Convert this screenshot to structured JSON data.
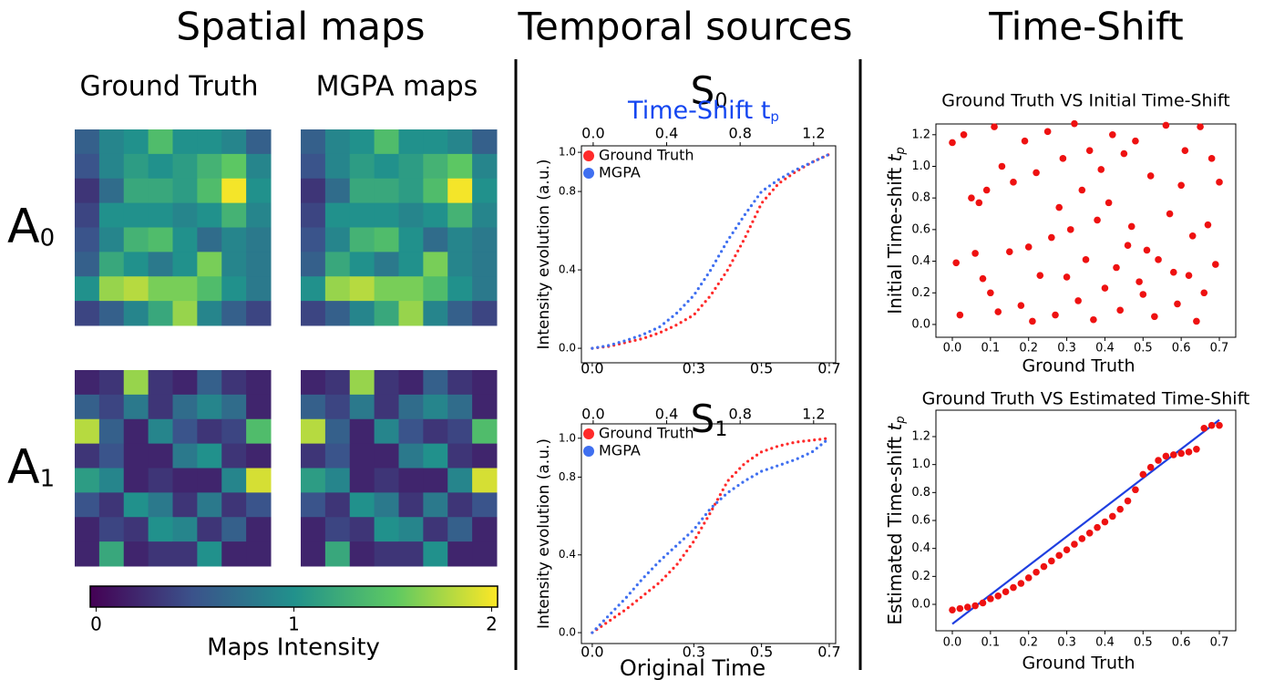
{
  "section_titles": [
    "Spatial maps",
    "Temporal sources",
    "Time-Shift"
  ],
  "chart_data": [
    {
      "type": "heatmap",
      "colormap": "viridis",
      "column_titles": [
        "Ground Truth",
        "MGPA maps"
      ],
      "row_labels": [
        {
          "letter": "A",
          "sub": "0"
        },
        {
          "letter": "A",
          "sub": "1"
        }
      ],
      "maps": [
        [
          [
            [
              0.6,
              0.9,
              1.0,
              1.4,
              1.0,
              1.0,
              0.9,
              0.6
            ],
            [
              0.5,
              0.9,
              1.1,
              1.0,
              1.1,
              1.3,
              1.5,
              0.9
            ],
            [
              0.3,
              0.7,
              1.2,
              1.2,
              1.1,
              1.4,
              2.0,
              1.0
            ],
            [
              0.4,
              1.0,
              1.0,
              1.0,
              0.9,
              1.0,
              1.3,
              0.9
            ],
            [
              0.5,
              0.9,
              1.3,
              1.4,
              1.0,
              0.7,
              0.9,
              0.8
            ],
            [
              0.6,
              1.2,
              1.0,
              0.8,
              1.0,
              1.6,
              0.9,
              0.8
            ],
            [
              1.0,
              1.7,
              1.8,
              1.6,
              1.6,
              1.4,
              1.0,
              0.8
            ],
            [
              0.4,
              0.6,
              0.9,
              1.2,
              1.7,
              0.9,
              0.6,
              0.4
            ]
          ],
          [
            [
              0.6,
              0.9,
              1.0,
              1.4,
              1.0,
              1.0,
              0.9,
              0.6
            ],
            [
              0.5,
              0.9,
              1.1,
              1.0,
              1.1,
              1.3,
              1.5,
              0.9
            ],
            [
              0.3,
              0.7,
              1.2,
              1.2,
              1.1,
              1.4,
              2.0,
              1.0
            ],
            [
              0.4,
              1.0,
              1.0,
              1.0,
              0.9,
              1.0,
              1.3,
              0.9
            ],
            [
              0.5,
              0.9,
              1.3,
              1.4,
              1.0,
              0.7,
              0.9,
              0.8
            ],
            [
              0.6,
              1.2,
              1.0,
              0.8,
              1.0,
              1.6,
              0.9,
              0.8
            ],
            [
              1.0,
              1.7,
              1.8,
              1.6,
              1.6,
              1.4,
              1.0,
              0.8
            ],
            [
              0.4,
              0.6,
              0.9,
              1.2,
              1.7,
              0.9,
              0.6,
              0.4
            ]
          ]
        ],
        [
          [
            [
              0.2,
              0.3,
              1.7,
              0.3,
              0.2,
              0.6,
              0.3,
              0.2
            ],
            [
              0.6,
              0.4,
              0.8,
              0.3,
              0.7,
              0.9,
              0.7,
              0.2
            ],
            [
              1.8,
              0.6,
              0.2,
              0.9,
              0.5,
              0.3,
              0.4,
              1.4
            ],
            [
              0.3,
              0.5,
              0.2,
              0.2,
              0.8,
              1.0,
              0.3,
              0.2
            ],
            [
              1.1,
              0.9,
              0.2,
              0.3,
              0.2,
              0.2,
              0.9,
              1.9
            ],
            [
              0.5,
              0.3,
              1.0,
              0.8,
              0.3,
              0.8,
              0.3,
              0.5
            ],
            [
              0.2,
              0.4,
              0.3,
              1.0,
              0.9,
              0.3,
              0.6,
              0.2
            ],
            [
              0.2,
              1.2,
              0.2,
              0.3,
              0.3,
              1.0,
              0.2,
              0.2
            ]
          ],
          [
            [
              0.2,
              0.3,
              1.7,
              0.3,
              0.2,
              0.6,
              0.3,
              0.2
            ],
            [
              0.6,
              0.4,
              0.8,
              0.3,
              0.7,
              0.9,
              0.7,
              0.2
            ],
            [
              1.8,
              0.6,
              0.2,
              0.9,
              0.5,
              0.3,
              0.4,
              1.4
            ],
            [
              0.3,
              0.5,
              0.2,
              0.2,
              0.8,
              1.0,
              0.3,
              0.2
            ],
            [
              1.1,
              0.9,
              0.2,
              0.3,
              0.2,
              0.2,
              0.9,
              1.9
            ],
            [
              0.5,
              0.3,
              1.0,
              0.8,
              0.3,
              0.8,
              0.3,
              0.5
            ],
            [
              0.2,
              0.4,
              0.3,
              1.0,
              0.9,
              0.3,
              0.6,
              0.2
            ],
            [
              0.2,
              1.2,
              0.2,
              0.3,
              0.3,
              1.0,
              0.2,
              0.2
            ]
          ]
        ]
      ],
      "zlim": [
        -0.03,
        2.03
      ],
      "zticks": [
        0,
        1,
        2
      ],
      "colorbar_label": "Maps Intensity"
    },
    {
      "type": "line",
      "title": "S",
      "title_sub": "0",
      "x2label": "Time-Shift t",
      "x2label_sub": "p",
      "ylabel": "Intensity evolution (a.u.)",
      "legend": "upper left",
      "xaxis_color": "#ff0000",
      "x2axis_color": "#1446f0",
      "x": [
        0,
        0.05,
        0.1,
        0.15,
        0.2,
        0.25,
        0.3,
        0.35,
        0.4,
        0.45,
        0.5,
        0.55,
        0.6,
        0.65,
        0.7
      ],
      "series": [
        {
          "name": "Ground Truth",
          "color": "#ff2a2a",
          "values": [
            0,
            0.01,
            0.03,
            0.05,
            0.08,
            0.12,
            0.17,
            0.27,
            0.4,
            0.56,
            0.74,
            0.84,
            0.9,
            0.95,
            0.99
          ]
        },
        {
          "name": "MGPA",
          "color": "#3f6ff0",
          "values": [
            0,
            0.015,
            0.04,
            0.07,
            0.11,
            0.18,
            0.27,
            0.4,
            0.55,
            0.68,
            0.8,
            0.86,
            0.91,
            0.95,
            0.99
          ]
        }
      ],
      "xlim": [
        -0.032,
        0.719
      ],
      "xticks": [
        {
          "value": 0,
          "label": "0.0"
        },
        0.3,
        0.5,
        0.7
      ],
      "x2lim": [
        -0.064,
        1.32
      ],
      "x2ticks": [
        {
          "value": 0,
          "label": "0.0"
        },
        0.4,
        0.8,
        1.2
      ],
      "ylim": [
        -0.074,
        1.033
      ],
      "yticks": [
        {
          "value": 0,
          "label": "0.0"
        },
        0.4,
        0.8,
        {
          "value": 1,
          "label": "1.0"
        }
      ]
    },
    {
      "type": "line",
      "title": "S",
      "title_sub": "1",
      "xlabel": "Original Time",
      "ylabel": "Intensity evolution (a.u.)",
      "legend": "upper left",
      "xaxis_color": "#ff0000",
      "x2axis_color": "#1446f0",
      "x": [
        0,
        0.05,
        0.1,
        0.15,
        0.2,
        0.25,
        0.3,
        0.35,
        0.4,
        0.45,
        0.5,
        0.55,
        0.6,
        0.65,
        0.7
      ],
      "series": [
        {
          "name": "Ground Truth",
          "color": "#ff2a2a",
          "values": [
            0,
            0.06,
            0.12,
            0.19,
            0.26,
            0.35,
            0.47,
            0.62,
            0.78,
            0.87,
            0.93,
            0.96,
            0.98,
            0.99,
            1.0
          ]
        },
        {
          "name": "MGPA",
          "color": "#3f6ff0",
          "values": [
            0,
            0.09,
            0.18,
            0.28,
            0.37,
            0.45,
            0.53,
            0.64,
            0.72,
            0.78,
            0.83,
            0.86,
            0.89,
            0.93,
            1.0
          ]
        }
      ],
      "xlim": [
        -0.032,
        0.719
      ],
      "xticks": [
        {
          "value": 0,
          "label": "0.0"
        },
        0.3,
        0.5,
        0.7
      ],
      "x2lim": [
        -0.064,
        1.32
      ],
      "x2ticks": [
        {
          "value": 0,
          "label": "0.0"
        },
        0.4,
        0.8,
        1.2
      ],
      "ylim": [
        -0.056,
        1.074
      ],
      "yticks": [
        {
          "value": 0,
          "label": "0.0"
        },
        0.4,
        0.8,
        {
          "value": 1,
          "label": "1.0"
        }
      ]
    },
    {
      "type": "scatter",
      "title": "Ground Truth VS Initial Time-Shift",
      "xlabel": "Ground Truth",
      "ylabel": "Initial Time-shift ",
      "ylabel_var": "t",
      "ylabel_sub": "p",
      "points": {
        "color": "#ee1111",
        "x": [
          0.0,
          0.01,
          0.02,
          0.03,
          0.05,
          0.06,
          0.07,
          0.08,
          0.09,
          0.1,
          0.11,
          0.12,
          0.13,
          0.15,
          0.16,
          0.18,
          0.19,
          0.2,
          0.21,
          0.22,
          0.23,
          0.25,
          0.26,
          0.27,
          0.28,
          0.29,
          0.3,
          0.31,
          0.32,
          0.33,
          0.34,
          0.35,
          0.36,
          0.37,
          0.38,
          0.39,
          0.4,
          0.41,
          0.42,
          0.43,
          0.44,
          0.45,
          0.46,
          0.47,
          0.48,
          0.49,
          0.5,
          0.51,
          0.52,
          0.53,
          0.54,
          0.56,
          0.57,
          0.58,
          0.59,
          0.6,
          0.61,
          0.62,
          0.63,
          0.64,
          0.65,
          0.66,
          0.67,
          0.68,
          0.69,
          0.7
        ],
        "y": [
          1.15,
          0.39,
          0.06,
          1.2,
          0.8,
          0.45,
          0.77,
          0.29,
          0.85,
          0.2,
          1.25,
          0.08,
          1.0,
          0.46,
          0.9,
          0.12,
          1.16,
          0.49,
          0.02,
          0.96,
          0.31,
          1.22,
          0.55,
          0.06,
          0.74,
          1.05,
          0.3,
          0.6,
          1.27,
          0.15,
          0.85,
          0.41,
          1.1,
          0.03,
          0.66,
          0.98,
          0.23,
          0.77,
          1.2,
          0.36,
          0.09,
          1.08,
          0.5,
          0.62,
          1.16,
          0.27,
          0.19,
          0.47,
          0.94,
          0.05,
          0.41,
          1.26,
          0.7,
          0.33,
          0.13,
          0.88,
          1.1,
          0.31,
          0.56,
          0.02,
          1.25,
          0.2,
          0.63,
          1.05,
          0.38,
          0.9
        ]
      },
      "xlim": [
        -0.043,
        0.743
      ],
      "xticks": [
        {
          "value": 0,
          "label": "0.0"
        },
        0.1,
        0.2,
        0.3,
        0.4,
        0.5,
        0.6,
        0.7
      ],
      "ylim": [
        -0.081,
        1.268
      ],
      "yticks": [
        {
          "value": 0,
          "label": "0.0"
        },
        0.2,
        0.4,
        0.6,
        0.8,
        {
          "value": 1,
          "label": "1.0"
        },
        1.2
      ]
    },
    {
      "type": "scatter",
      "title": "Ground Truth VS Estimated Time-Shift",
      "xlabel": "Ground Truth",
      "ylabel": "Estimated Time-shift ",
      "ylabel_var": "t",
      "ylabel_sub": "p",
      "points": {
        "color": "#ee1111",
        "x": [
          0,
          0.02,
          0.04,
          0.06,
          0.08,
          0.1,
          0.12,
          0.14,
          0.16,
          0.18,
          0.2,
          0.22,
          0.24,
          0.26,
          0.28,
          0.3,
          0.32,
          0.34,
          0.36,
          0.38,
          0.4,
          0.42,
          0.44,
          0.46,
          0.48,
          0.5,
          0.52,
          0.54,
          0.56,
          0.58,
          0.6,
          0.62,
          0.64,
          0.66,
          0.68,
          0.7
        ],
        "y": [
          -0.04,
          -0.03,
          -0.02,
          -0.01,
          0.01,
          0.04,
          0.06,
          0.09,
          0.12,
          0.15,
          0.19,
          0.23,
          0.27,
          0.31,
          0.35,
          0.39,
          0.43,
          0.47,
          0.51,
          0.55,
          0.59,
          0.63,
          0.68,
          0.74,
          0.82,
          0.93,
          0.98,
          1.03,
          1.06,
          1.07,
          1.08,
          1.09,
          1.11,
          1.26,
          1.28,
          1.28
        ]
      },
      "fit_line": {
        "color": "#1f3fe0",
        "x": [
          0,
          0.7
        ],
        "y": [
          -0.14,
          1.32
        ]
      },
      "xlim": [
        -0.043,
        0.743
      ],
      "xticks": [
        {
          "value": 0,
          "label": "0.0"
        },
        0.1,
        0.2,
        0.3,
        0.4,
        0.5,
        0.6,
        0.7
      ],
      "ylim": [
        -0.189,
        1.389
      ],
      "yticks": [
        {
          "value": 0,
          "label": "0.0"
        },
        0.2,
        0.4,
        0.6,
        0.8,
        {
          "value": 1,
          "label": "1.0"
        },
        1.2
      ]
    }
  ]
}
